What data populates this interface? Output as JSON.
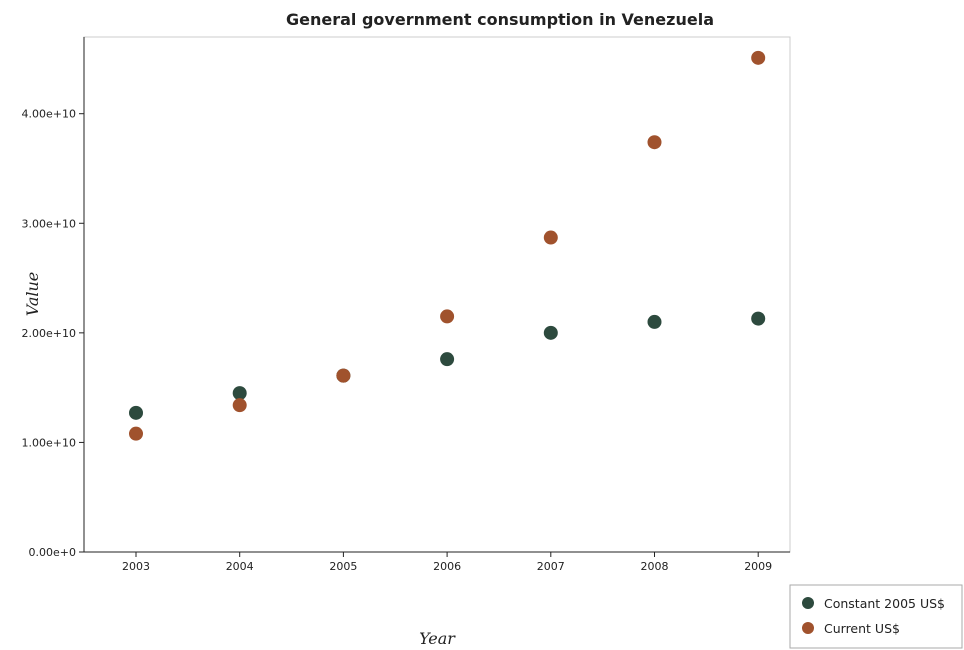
{
  "chart_data": {
    "type": "scatter",
    "title": "General government consumption in Venezuela",
    "xlabel": "Year",
    "ylabel": "Value",
    "categories": [
      "2003",
      "2004",
      "2005",
      "2006",
      "2007",
      "2008",
      "2009"
    ],
    "ylim": [
      0,
      47000000000
    ],
    "yticks": [
      0,
      10000000000,
      20000000000,
      30000000000,
      40000000000
    ],
    "ytick_labels": [
      "0.00e+0",
      "1.00e+10",
      "2.00e+10",
      "3.00e+10",
      "4.00e+10"
    ],
    "grid": false,
    "legend_position": "bottom-right",
    "series": [
      {
        "name": "Constant 2005 US$",
        "color": "#2d4a3e",
        "values": [
          12700000000,
          14500000000,
          16100000000,
          17600000000,
          20000000000,
          21000000000,
          21300000000
        ]
      },
      {
        "name": "Current US$",
        "color": "#a0522d",
        "values": [
          10800000000,
          13400000000,
          16100000000,
          21500000000,
          28700000000,
          37400000000,
          45100000000
        ]
      }
    ]
  }
}
